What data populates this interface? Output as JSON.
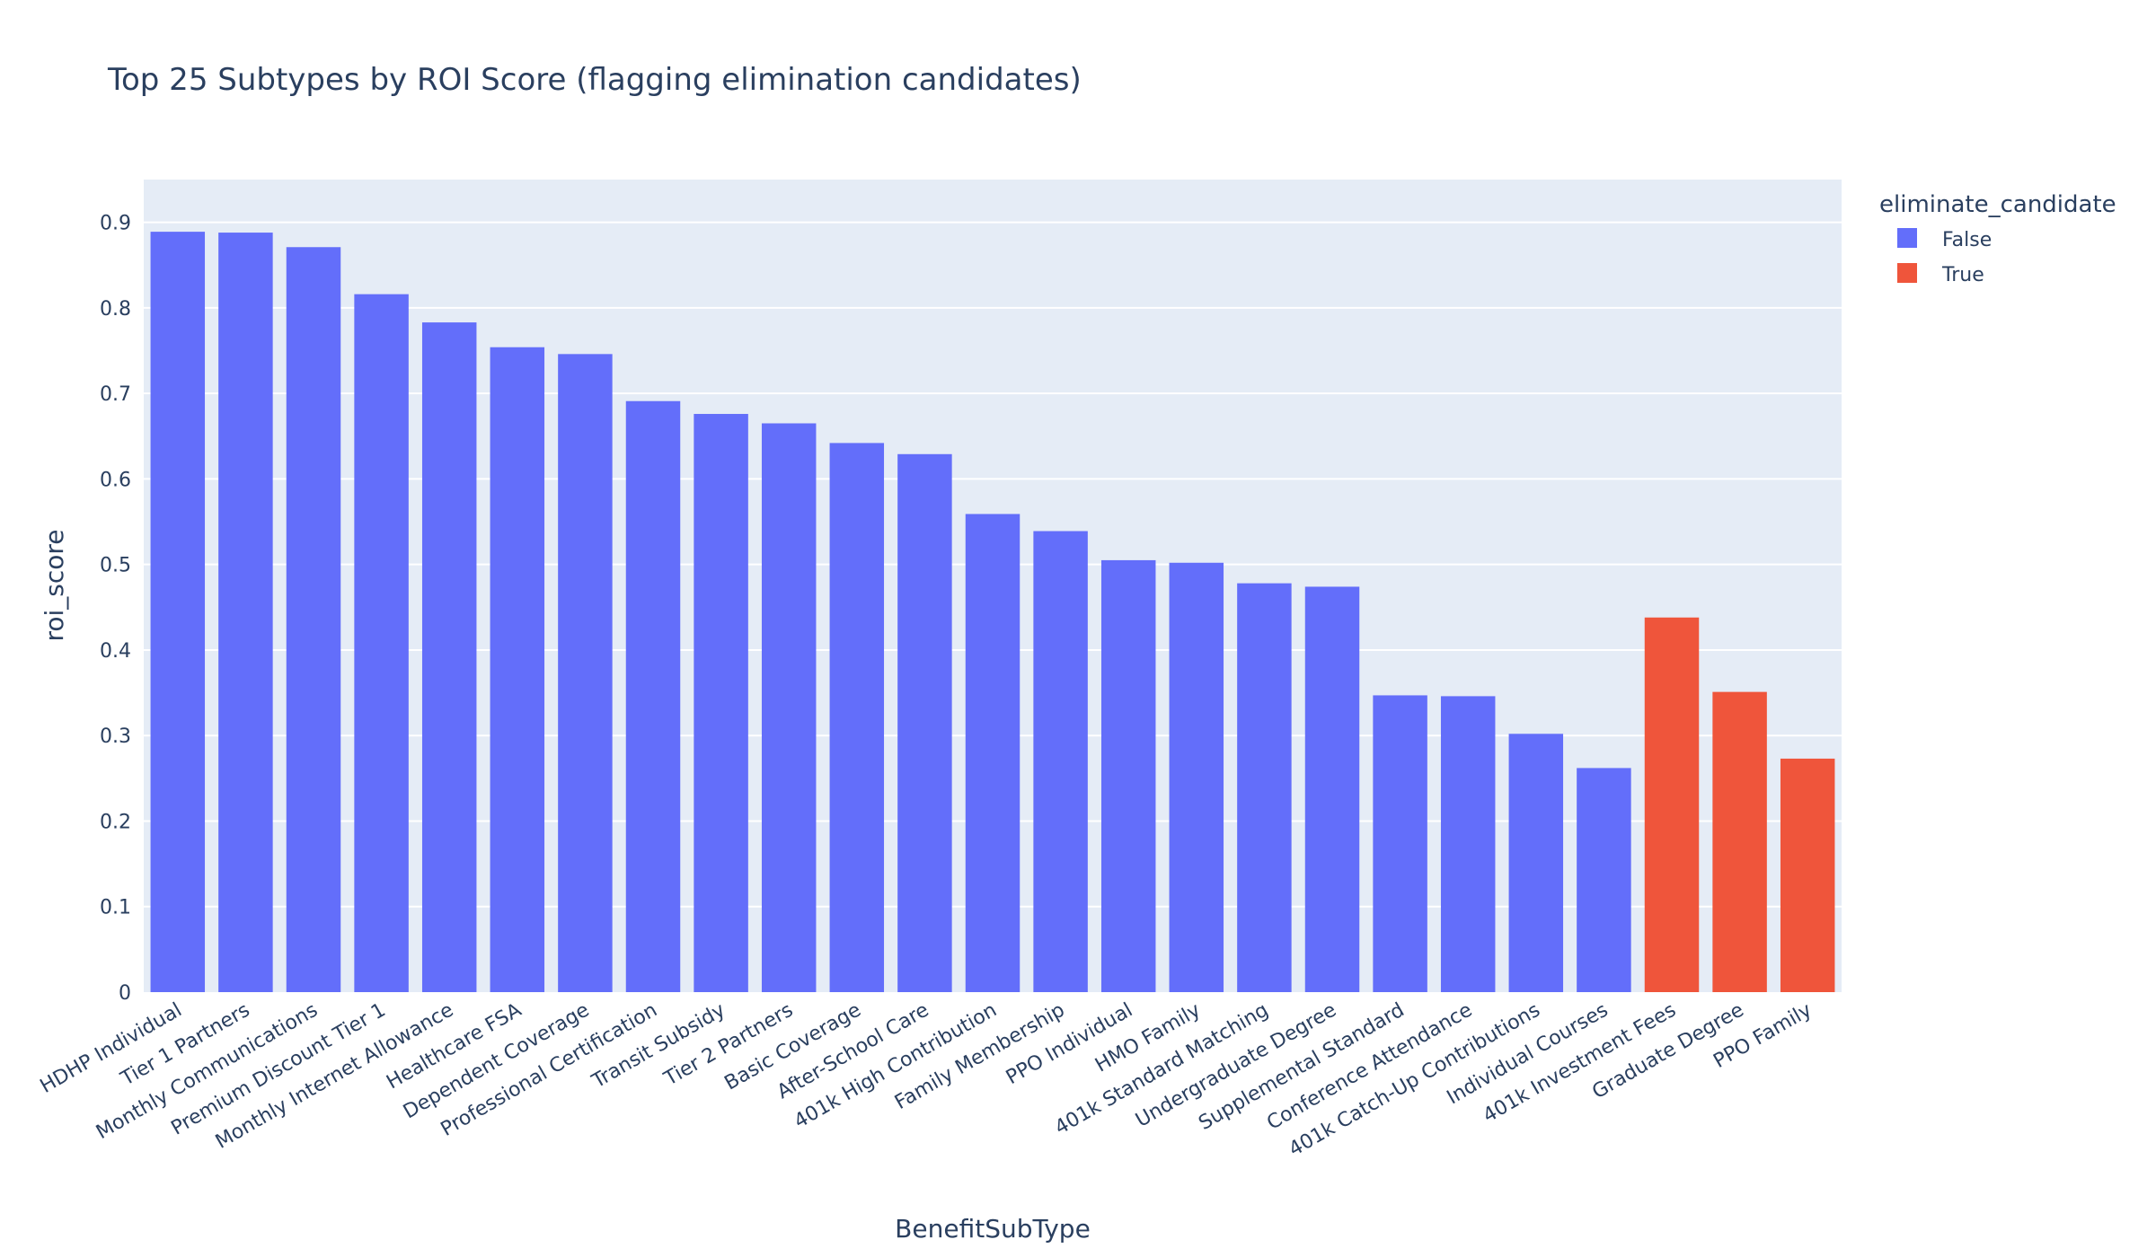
{
  "chart_data": {
    "type": "bar",
    "title": "Top 25 Subtypes by ROI Score (flagging elimination candidates)",
    "xlabel": "BenefitSubType",
    "ylabel": "roi_score",
    "ylim": [
      0,
      0.95
    ],
    "yticks": [
      0,
      0.1,
      0.2,
      0.3,
      0.4,
      0.5,
      0.6,
      0.7,
      0.8,
      0.9
    ],
    "ytick_labels": [
      "0",
      "0.1",
      "0.2",
      "0.3",
      "0.4",
      "0.5",
      "0.6",
      "0.7",
      "0.8",
      "0.9"
    ],
    "grid": true,
    "legend": {
      "title": "eliminate_candidate",
      "placement": "top-right",
      "entries": [
        {
          "label": "False",
          "color": "#636efa"
        },
        {
          "label": "True",
          "color": "#ef553b"
        }
      ]
    },
    "colors": {
      "False": "#636efa",
      "True": "#ef553b",
      "plot_bg": "#e5ecf6",
      "text": "#2a3f5f"
    },
    "categories": [
      "HDHP Individual",
      "Tier 1 Partners",
      "Monthly Communications",
      "Premium Discount Tier 1",
      "Monthly Internet Allowance",
      "Healthcare FSA",
      "Dependent Coverage",
      "Professional Certification",
      "Transit Subsidy",
      "Tier 2 Partners",
      "Basic Coverage",
      "After-School Care",
      "401k High Contribution",
      "Family Membership",
      "PPO Individual",
      "HMO Family",
      "401k Standard Matching",
      "Undergraduate Degree",
      "Supplemental Standard",
      "Conference Attendance",
      "401k Catch-Up Contributions",
      "Individual Courses",
      "401k Investment Fees",
      "Graduate Degree",
      "PPO Family"
    ],
    "values": [
      0.889,
      0.888,
      0.871,
      0.816,
      0.783,
      0.754,
      0.746,
      0.691,
      0.676,
      0.665,
      0.642,
      0.629,
      0.559,
      0.539,
      0.505,
      0.502,
      0.478,
      0.474,
      0.347,
      0.346,
      0.302,
      0.262,
      0.438,
      0.351,
      0.273
    ],
    "eliminate_candidate": [
      false,
      false,
      false,
      false,
      false,
      false,
      false,
      false,
      false,
      false,
      false,
      false,
      false,
      false,
      false,
      false,
      false,
      false,
      false,
      false,
      false,
      false,
      true,
      true,
      true
    ]
  }
}
